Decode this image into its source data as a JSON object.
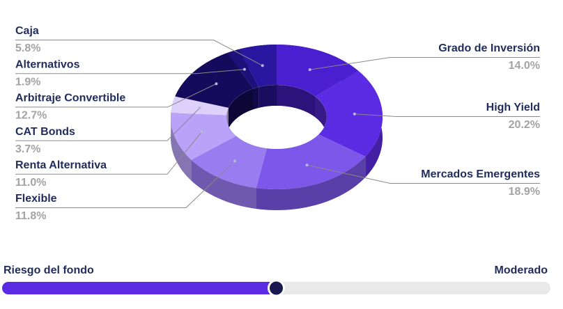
{
  "chart_data": {
    "type": "donut",
    "categories": [
      "Grado de Inversión",
      "High Yield",
      "Mercados Emergentes",
      "Flexible",
      "Renta Alternativa",
      "CAT Bonds",
      "Arbitraje Convertible",
      "Alternativos",
      "Caja"
    ],
    "values": [
      14.0,
      20.2,
      18.9,
      11.8,
      11.0,
      3.7,
      12.7,
      1.9,
      5.8
    ],
    "value_labels": [
      "14.0%",
      "20.2%",
      "18.9%",
      "11.8%",
      "11.0%",
      "3.7%",
      "12.7%",
      "1.9%",
      "5.8%"
    ],
    "colors": [
      "#4a1fcf",
      "#5b2be3",
      "#7c57ea",
      "#9a7cf1",
      "#b9a2f7",
      "#ddd0fb",
      "#150a5c",
      "#1e0f7a",
      "#2b169f"
    ]
  },
  "risk": {
    "label": "Riesgo del fondo",
    "value_label": "Moderado",
    "value": 50,
    "lim": [
      0,
      100
    ],
    "fill_color": "#5b2be3",
    "knob_color": "#1b1850"
  }
}
